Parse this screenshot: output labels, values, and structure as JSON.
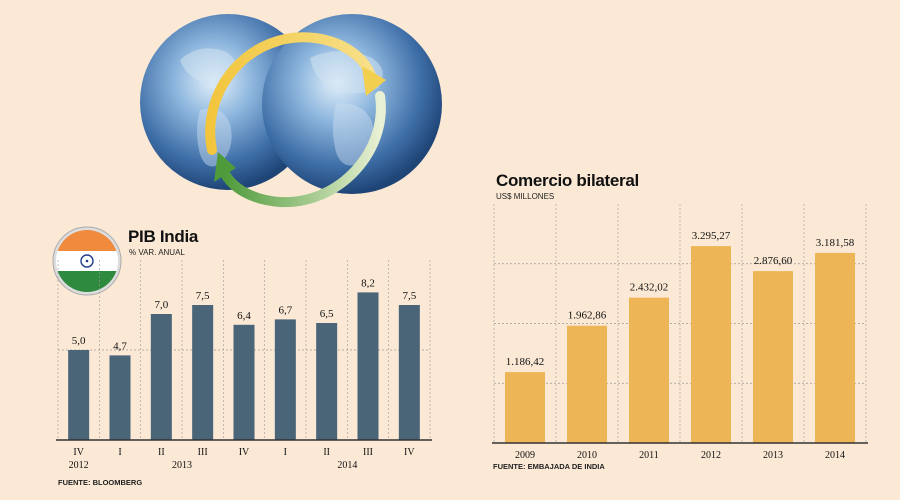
{
  "charts": {
    "left": {
      "title": "PIB India",
      "subtitle": "% VAR. ANUAL",
      "source": "FUENTE: BLOOMBERG"
    },
    "right": {
      "title": "Comercio bilateral",
      "subtitle": "US$ MILLONES",
      "source": "FUENTE: EMBAJADA DE INDIA"
    }
  },
  "colors": {
    "background": "#fbe9d6",
    "gdp_bar": "#4a6478",
    "trade_bar": "#edb555",
    "grid": "#9a9a9a"
  },
  "chart_data": [
    {
      "type": "bar",
      "title": "PIB India",
      "ylabel": "% VAR. ANUAL",
      "ylim": [
        0,
        10
      ],
      "categories": [
        "IV",
        "I",
        "II",
        "III",
        "IV",
        "I",
        "II",
        "III",
        "IV"
      ],
      "year_labels": [
        {
          "label": "2012",
          "from": 0,
          "to": 0
        },
        {
          "label": "2013",
          "from": 1,
          "to": 4
        },
        {
          "label": "2014",
          "from": 5,
          "to": 8
        }
      ],
      "values": [
        5.0,
        4.7,
        7.0,
        7.5,
        6.4,
        6.7,
        6.5,
        8.2,
        7.5
      ],
      "value_labels": [
        "5,0",
        "4,7",
        "7,0",
        "7,5",
        "6,4",
        "6,7",
        "6,5",
        "8,2",
        "7,5"
      ],
      "grid": true,
      "source": "FUENTE: BLOOMBERG"
    },
    {
      "type": "bar",
      "title": "Comercio bilateral",
      "ylabel": "US$ MILLONES",
      "ylim": [
        0,
        4000
      ],
      "categories": [
        "2009",
        "2010",
        "2011",
        "2012",
        "2013",
        "2014"
      ],
      "values": [
        1186.42,
        1962.86,
        2432.02,
        3295.27,
        2876.6,
        3181.58
      ],
      "value_labels": [
        "1.186,42",
        "1.962,86",
        "2.432,02",
        "3.295,27",
        "2.876,60",
        "3.181,58"
      ],
      "grid": true,
      "source": "FUENTE: EMBAJADA DE INDIA"
    }
  ]
}
